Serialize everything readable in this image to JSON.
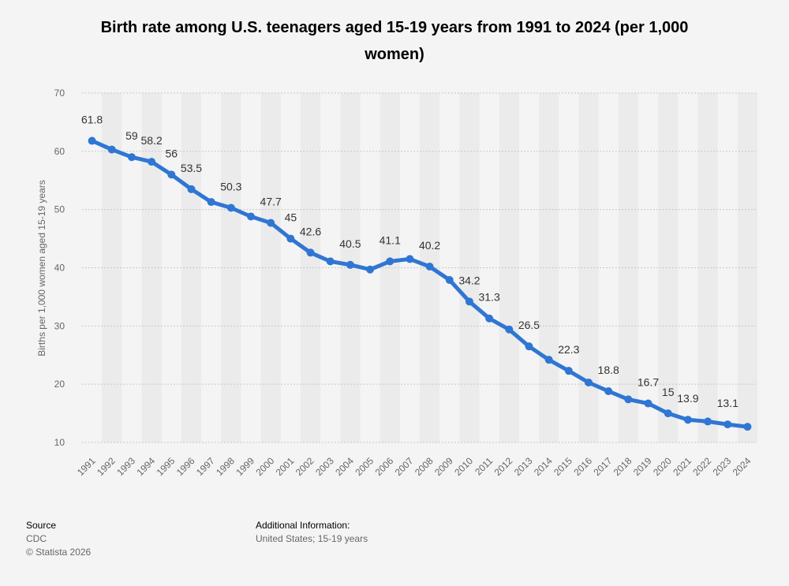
{
  "chart_data": {
    "type": "line",
    "title": "Birth rate among U.S. teenagers aged 15-19 years from 1991 to 2024 (per 1,000 women)",
    "xlabel": "",
    "ylabel": "Births per 1,000 women aged 15-19 years",
    "ylim": [
      10,
      70
    ],
    "yticks": [
      10,
      20,
      30,
      40,
      50,
      60,
      70
    ],
    "grid": true,
    "legend": "none",
    "categories": [
      "1991",
      "1992",
      "1993",
      "1994",
      "1995",
      "1996",
      "1997",
      "1998",
      "1999",
      "2000",
      "2001",
      "2002",
      "2003",
      "2004",
      "2005",
      "2006",
      "2007",
      "2008",
      "2009",
      "2010",
      "2011",
      "2012",
      "2013",
      "2014",
      "2015",
      "2016",
      "2017",
      "2018",
      "2019",
      "2020",
      "2021",
      "2022",
      "2023",
      "2024"
    ],
    "series": [
      {
        "name": "Birth rate",
        "color": "#2f76d4",
        "values": [
          61.8,
          60.3,
          59,
          58.2,
          56,
          53.5,
          51.3,
          50.3,
          48.8,
          47.7,
          45,
          42.6,
          41.1,
          40.5,
          39.7,
          41.1,
          41.5,
          40.2,
          37.9,
          34.2,
          31.3,
          29.4,
          26.5,
          24.2,
          22.3,
          20.3,
          18.8,
          17.4,
          16.7,
          15,
          13.9,
          13.6,
          13.1,
          12.7
        ]
      }
    ],
    "data_labels": [
      {
        "index": 0,
        "text": "61.8"
      },
      {
        "index": 2,
        "text": "59"
      },
      {
        "index": 3,
        "text": "58.2"
      },
      {
        "index": 4,
        "text": "56"
      },
      {
        "index": 5,
        "text": "53.5"
      },
      {
        "index": 7,
        "text": "50.3"
      },
      {
        "index": 9,
        "text": "47.7"
      },
      {
        "index": 10,
        "text": "45"
      },
      {
        "index": 11,
        "text": "42.6"
      },
      {
        "index": 13,
        "text": "40.5"
      },
      {
        "index": 15,
        "text": "41.1"
      },
      {
        "index": 17,
        "text": "40.2"
      },
      {
        "index": 19,
        "text": "34.2"
      },
      {
        "index": 20,
        "text": "31.3"
      },
      {
        "index": 22,
        "text": "26.5"
      },
      {
        "index": 24,
        "text": "22.3"
      },
      {
        "index": 26,
        "text": "18.8"
      },
      {
        "index": 28,
        "text": "16.7"
      },
      {
        "index": 29,
        "text": "15"
      },
      {
        "index": 30,
        "text": "13.9"
      },
      {
        "index": 32,
        "text": "13.1"
      }
    ]
  },
  "footer": {
    "source_heading": "Source",
    "source_name": "CDC",
    "copyright": "© Statista 2026",
    "addinfo_heading": "Additional Information:",
    "addinfo_text": "United States; 15-19 years"
  },
  "colors": {
    "line": "#2f76d4",
    "band": "#ebebeb",
    "background": "#f4f4f4"
  }
}
